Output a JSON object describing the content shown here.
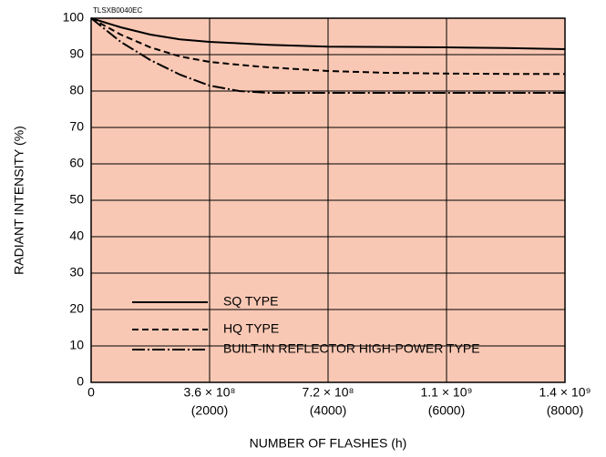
{
  "chart_data": {
    "type": "line",
    "annotation": "TLSXB0040EC",
    "xlabel": "NUMBER OF FLASHES (h)",
    "ylabel": "RADIANT INTENSITY (%)",
    "x": [
      0,
      500,
      1000,
      1500,
      2000,
      2500,
      3000,
      4000,
      5000,
      6000,
      7000,
      8000
    ],
    "series": [
      {
        "name": "SQ TYPE",
        "color": "#000000",
        "dash": "solid",
        "values": [
          100,
          97.5,
          95.5,
          94.2,
          93.5,
          93.1,
          92.7,
          92.2,
          92.1,
          92,
          91.8,
          91.5
        ]
      },
      {
        "name": "HQ TYPE",
        "color": "#000000",
        "dash": "dashed",
        "values": [
          100,
          95.5,
          92,
          89.5,
          88,
          87.2,
          86.5,
          85.5,
          85,
          84.8,
          84.7,
          84.7
        ]
      },
      {
        "name": "BUILT-IN REFLECTOR HIGH-POWER TYPE",
        "color": "#000000",
        "dash": "dashdot",
        "values": [
          100,
          93.5,
          88.5,
          84.5,
          81.5,
          80,
          79.5,
          79.5,
          79.5,
          79.5,
          79.5,
          79.5
        ]
      }
    ],
    "xlim": [
      0,
      8000
    ],
    "xticks": [
      0,
      {
        "value": 2000,
        "label": "3.6 × 10⁸",
        "sublabel": "(2000)"
      },
      {
        "value": 4000,
        "label": "7.2 × 10⁸",
        "sublabel": "(4000)"
      },
      {
        "value": 6000,
        "label": "1.1 × 10⁹",
        "sublabel": "(6000)"
      },
      {
        "value": 8000,
        "label": "1.4 × 10⁹",
        "sublabel": "(8000)"
      }
    ],
    "ylim": [
      0,
      100
    ],
    "yticks": [
      0,
      10,
      20,
      30,
      40,
      50,
      60,
      70,
      80,
      90,
      100
    ],
    "grid": true,
    "background": "#f9c8b4",
    "legend": "lower left"
  }
}
